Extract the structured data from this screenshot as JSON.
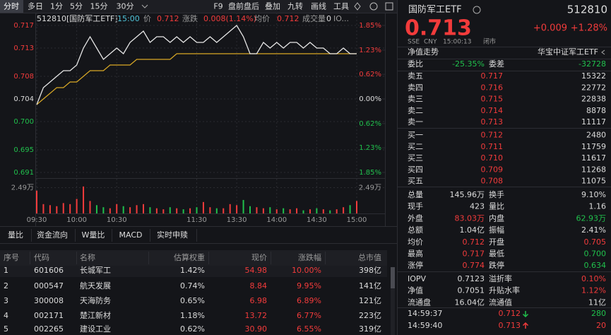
{
  "toolbar": {
    "periods": [
      "分时",
      "多日",
      "1分",
      "5分",
      "15分",
      "30分"
    ],
    "tools": [
      "F9",
      "盘前盘后",
      "叠加",
      "九转",
      "画线",
      "工具"
    ]
  },
  "info": {
    "name": "512810[国防军工ETF]",
    "time": "15:00",
    "price_label": "价",
    "price": "0.712",
    "change_label": "涨跌",
    "change": "0.008(1.14%)",
    "avg_label": "均价",
    "avg": "0.712",
    "volume_label": "成交量",
    "volume": "0",
    "iopv": "IO..."
  },
  "chart": {
    "type": "line",
    "ylim": [
      0.691,
      0.717
    ],
    "yticks": [
      0.717,
      0.713,
      0.708,
      0.704,
      {
        "value": 0.7,
        "label": "0.700"
      },
      0.695,
      0.691
    ],
    "y2lim": [
      -1.85,
      1.85
    ],
    "y2ticks": [
      {
        "value": 1.85,
        "label": "1.85%"
      },
      {
        "value": 1.23,
        "label": "1.23%"
      },
      {
        "value": 0.62,
        "label": "0.62%"
      },
      {
        "value": 0,
        "label": "0.00%"
      },
      {
        "value": -0.62,
        "label": "0.62%"
      },
      {
        "value": -1.23,
        "label": "1.23%"
      },
      {
        "value": -1.85,
        "label": "1.85%"
      }
    ],
    "xticks": [
      "09:30",
      "10:00",
      "10:30",
      "11:30",
      "13:30",
      "14:00",
      "14:30",
      "15:00"
    ],
    "price_color": "#e6e6e6",
    "avg_color": "#d9a926",
    "price": [
      0.703,
      0.706,
      0.707,
      0.708,
      0.709,
      0.709,
      0.71,
      0.713,
      0.715,
      0.713,
      0.711,
      0.712,
      0.713,
      0.712,
      0.714,
      0.715,
      0.716,
      0.714,
      0.715,
      0.715,
      0.714,
      0.715,
      0.714,
      0.715,
      0.714,
      0.714,
      0.715,
      0.714,
      0.715,
      0.716,
      0.717,
      0.715,
      0.712,
      0.712,
      0.714,
      0.713,
      0.714,
      0.713,
      0.714,
      0.714,
      0.713,
      0.714,
      0.713,
      0.713,
      0.712,
      0.712,
      0.713,
      0.712,
      0.712
    ],
    "avg": [
      0.703,
      0.704,
      0.705,
      0.706,
      0.706,
      0.707,
      0.707,
      0.708,
      0.709,
      0.709,
      0.709,
      0.71,
      0.71,
      0.71,
      0.71,
      0.711,
      0.711,
      0.711,
      0.711,
      0.711,
      0.711,
      0.712,
      0.712,
      0.712,
      0.712,
      0.712,
      0.712,
      0.712,
      0.712,
      0.712,
      0.712,
      0.712,
      0.712,
      0.712,
      0.712,
      0.712,
      0.712,
      0.712,
      0.712,
      0.712,
      0.712,
      0.712,
      0.712,
      0.712,
      0.712,
      0.712,
      0.712,
      0.712,
      0.712
    ],
    "vlim": [
      0,
      3
    ],
    "vticks": [
      {
        "value": 2.49,
        "label": "2.49万"
      }
    ],
    "volume": [
      2.2,
      0.9,
      0.8,
      0.7,
      1.0,
      0.9,
      1.4,
      2.6,
      1.2,
      0.8,
      0.6,
      0.5,
      0.9,
      0.7,
      0.6,
      0.8,
      0.9,
      0.6,
      0.5,
      0.4,
      0.6,
      0.5,
      0.4,
      0.5,
      0.6,
      1.1,
      0.6,
      0.5,
      0.5,
      0.9,
      0.8,
      1.3,
      0.7,
      0.6,
      0.5,
      0.6,
      0.4,
      0.5,
      0.4,
      0.5,
      0.3,
      0.4,
      0.5,
      0.4,
      0.3,
      0.4,
      0.6,
      0.8,
      1.2
    ]
  },
  "tabs": [
    "量比",
    "资金流向",
    "W量比",
    "MACD",
    "实时申赎"
  ],
  "table": {
    "header": [
      "序号",
      "代码",
      "名称",
      "估算权重",
      "现价",
      "涨跌幅",
      "总市值"
    ],
    "rows": [
      [
        "1",
        "601606",
        "长城军工",
        "1.42%",
        "54.98",
        "10.00%",
        "398亿"
      ],
      [
        "2",
        "000547",
        "航天发展",
        "0.74%",
        "8.84",
        "9.95%",
        "141亿"
      ],
      [
        "3",
        "300008",
        "天海防务",
        "0.65%",
        "6.98",
        "6.89%",
        "121亿"
      ],
      [
        "4",
        "002171",
        "楚江新材",
        "1.18%",
        "13.72",
        "6.77%",
        "223亿"
      ],
      [
        "5",
        "002265",
        "建设工业",
        "0.62%",
        "30.90",
        "6.55%",
        "319亿"
      ]
    ]
  },
  "quote": {
    "name": "国防军工ETF",
    "code": "512810",
    "price": "0.713",
    "change": "+0.009",
    "pct": "+1.28%",
    "meta": [
      "SSE",
      "CNY",
      "15:00:13",
      "闭市"
    ],
    "nav_trend": "净值走势",
    "tracks": "华宝中证军工ETF",
    "ratio": [
      "委比",
      "-25.35%",
      "委差",
      "-32728"
    ],
    "book": [
      [
        "卖五",
        "0.717",
        "15322"
      ],
      [
        "卖四",
        "0.716",
        "22772"
      ],
      [
        "卖三",
        "0.715",
        "22838"
      ],
      [
        "卖二",
        "0.714",
        "8878"
      ],
      [
        "卖一",
        "0.713",
        "11117"
      ],
      [
        "买一",
        "0.712",
        "2480"
      ],
      [
        "买二",
        "0.711",
        "11759"
      ],
      [
        "买三",
        "0.710",
        "11617"
      ],
      [
        "买四",
        "0.709",
        "11268"
      ],
      [
        "买五",
        "0.708",
        "11075"
      ]
    ],
    "stats": [
      [
        "总量",
        "145.96万",
        "换手",
        "9.10%"
      ],
      [
        "现手",
        "423",
        "量比",
        "1.16"
      ],
      [
        "外盘",
        "83.03万",
        "内盘",
        "62.93万"
      ],
      [
        "总额",
        "1.04亿",
        "振幅",
        "2.41%"
      ],
      [
        "均价",
        "0.712",
        "开盘",
        "0.705"
      ],
      [
        "最高",
        "0.717",
        "最低",
        "0.700"
      ],
      [
        "涨停",
        "0.774",
        "跌停",
        "0.634"
      ],
      [
        "IOPV",
        "0.7123",
        "溢折率",
        "0.10%"
      ],
      [
        "净值",
        "0.7051",
        "升贴水率",
        "1.12%"
      ],
      [
        "流通盘",
        "16.04亿",
        "流通值",
        "11亿"
      ]
    ],
    "trades": [
      [
        "14:59:37",
        "0.712",
        "280"
      ],
      [
        "14:59:40",
        "0.713",
        "20"
      ]
    ]
  }
}
